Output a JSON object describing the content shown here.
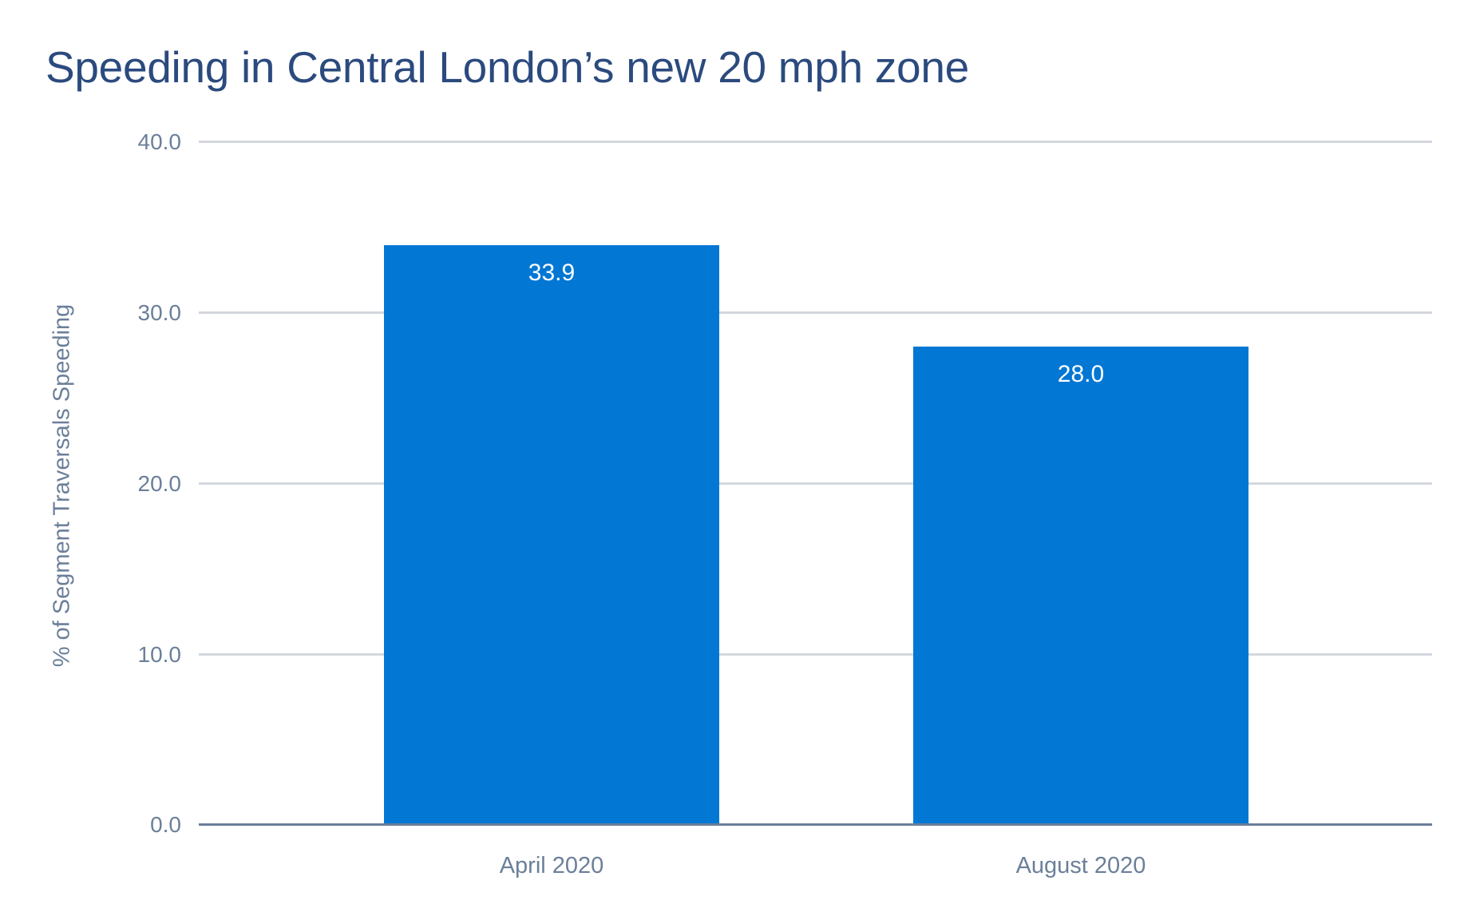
{
  "chart_data": {
    "type": "bar",
    "title": "Speeding in Central London’s new 20 mph zone",
    "xlabel": "",
    "ylabel": "% of Segment Traversals Speeding",
    "categories": [
      "April 2020",
      "August 2020"
    ],
    "values": [
      33.9,
      28.0
    ],
    "value_labels": [
      "33.9",
      "28.0"
    ],
    "ylim": [
      0,
      40
    ],
    "yticks": [
      "0.0",
      "10.0",
      "20.0",
      "30.0",
      "40.0"
    ],
    "grid": true,
    "legend": null,
    "colors": {
      "bar": "#0277d4",
      "title": "#2b4a7e",
      "axis_text": "#6b7f99",
      "grid": "#d3d8de"
    }
  }
}
